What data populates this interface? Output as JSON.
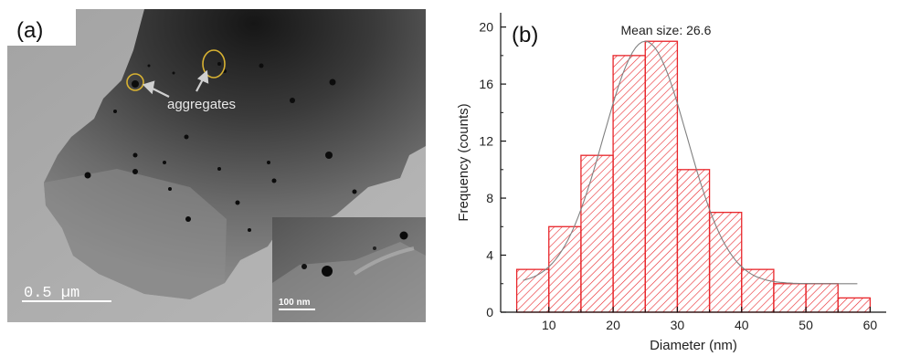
{
  "panel_a": {
    "label": "(a)",
    "annotation": "aggregates",
    "scale_bar": "0.5 µm",
    "inset_scale_bar": "100 nm"
  },
  "chart_data": {
    "type": "bar",
    "panel_label": "(b)",
    "title": "",
    "xlabel": "Diameter (nm)",
    "ylabel": "Frequency (counts)",
    "annotation": "Mean size: 26.6",
    "bin_width": 5,
    "bin_centers": [
      7.5,
      12.5,
      17.5,
      22.5,
      27.5,
      32.5,
      37.5,
      42.5,
      47.5,
      52.5,
      57.5
    ],
    "values": [
      3,
      6,
      11,
      18,
      19,
      10,
      7,
      3,
      2,
      2,
      1
    ],
    "xlim": [
      2.5,
      62.5
    ],
    "ylim": [
      0,
      21
    ],
    "xticks": [
      10,
      20,
      30,
      40,
      50,
      60
    ],
    "yticks": [
      0,
      4,
      8,
      12,
      16,
      20
    ],
    "fit_curve": "gaussian",
    "fit": {
      "mean": 25,
      "sigma": 6.5,
      "baseline": 2,
      "peak": 19
    },
    "colors": {
      "bar_edge": "#e8252a",
      "hatch": "#e8252a",
      "fit": "#808080",
      "axis": "#111111"
    }
  }
}
